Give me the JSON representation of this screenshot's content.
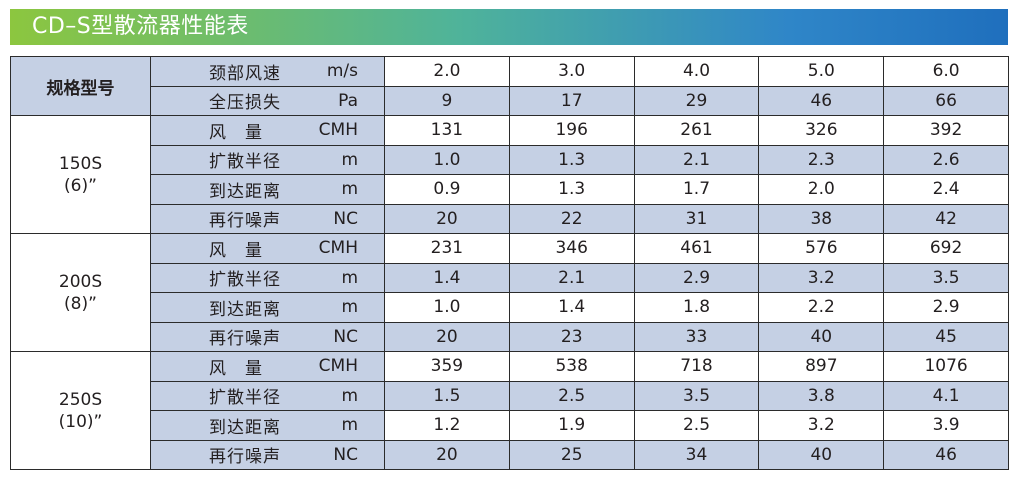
{
  "title": "CD–S型散流器性能表",
  "header": {
    "model_label": "规格型号",
    "neck_velocity": {
      "name": "颈部风速",
      "unit": "m/s",
      "values": [
        "2.0",
        "3.0",
        "4.0",
        "5.0",
        "6.0"
      ]
    },
    "total_pressure_loss": {
      "name": "全压损失",
      "unit": "Pa",
      "values": [
        "9",
        "17",
        "29",
        "46",
        "66"
      ]
    }
  },
  "groups": [
    {
      "model": "150S",
      "size": "(6)”",
      "rows": [
        {
          "name": "风　量",
          "unit": "CMH",
          "values": [
            "131",
            "196",
            "261",
            "326",
            "392"
          ]
        },
        {
          "name": "扩散半径",
          "unit": "m",
          "values": [
            "1.0",
            "1.3",
            "2.1",
            "2.3",
            "2.6"
          ]
        },
        {
          "name": "到达距离",
          "unit": "m",
          "values": [
            "0.9",
            "1.3",
            "1.7",
            "2.0",
            "2.4"
          ]
        },
        {
          "name": "再行噪声",
          "unit": "NC",
          "values": [
            "20",
            "22",
            "31",
            "38",
            "42"
          ]
        }
      ]
    },
    {
      "model": "200S",
      "size": "(8)”",
      "rows": [
        {
          "name": "风　量",
          "unit": "CMH",
          "values": [
            "231",
            "346",
            "461",
            "576",
            "692"
          ]
        },
        {
          "name": "扩散半径",
          "unit": "m",
          "values": [
            "1.4",
            "2.1",
            "2.9",
            "3.2",
            "3.5"
          ]
        },
        {
          "name": "到达距离",
          "unit": "m",
          "values": [
            "1.0",
            "1.4",
            "1.8",
            "2.2",
            "2.9"
          ]
        },
        {
          "name": "再行噪声",
          "unit": "NC",
          "values": [
            "20",
            "23",
            "33",
            "40",
            "45"
          ]
        }
      ]
    },
    {
      "model": "250S",
      "size": "(10)”",
      "rows": [
        {
          "name": "风　量",
          "unit": "CMH",
          "values": [
            "359",
            "538",
            "718",
            "897",
            "1076"
          ]
        },
        {
          "name": "扩散半径",
          "unit": "m",
          "values": [
            "1.5",
            "2.5",
            "3.5",
            "3.8",
            "4.1"
          ]
        },
        {
          "name": "到达距离",
          "unit": "m",
          "values": [
            "1.2",
            "1.9",
            "2.5",
            "3.2",
            "3.9"
          ]
        },
        {
          "name": "再行噪声",
          "unit": "NC",
          "values": [
            "20",
            "25",
            "34",
            "40",
            "46"
          ]
        }
      ]
    }
  ],
  "colors": {
    "title_gradient_start": "#8cc63f",
    "title_gradient_end": "#1f6fbd",
    "shaded_cell": "#c5d0e4",
    "border": "#2b2b2b"
  }
}
